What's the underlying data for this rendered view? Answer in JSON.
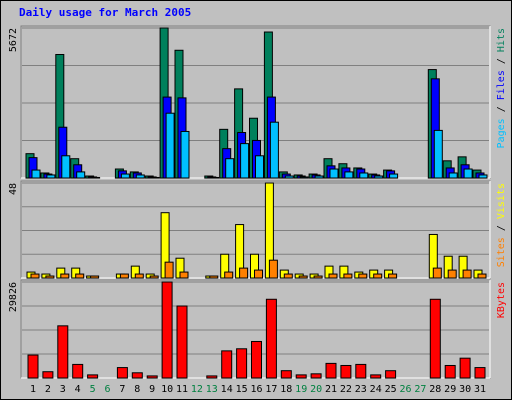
{
  "chart_data": [
    {
      "type": "bar",
      "title": "Daily usage for March 2005",
      "categories": [
        "1",
        "2",
        "3",
        "4",
        "5",
        "6",
        "7",
        "8",
        "9",
        "10",
        "11",
        "12",
        "13",
        "14",
        "15",
        "16",
        "17",
        "18",
        "19",
        "20",
        "21",
        "22",
        "23",
        "24",
        "25",
        "26",
        "27",
        "28",
        "29",
        "30",
        "31"
      ],
      "category_colors": [
        "#000000",
        "#000000",
        "#000000",
        "#000000",
        "#008040",
        "#008040",
        "#000000",
        "#000000",
        "#000000",
        "#000000",
        "#000000",
        "#008040",
        "#008040",
        "#000000",
        "#000000",
        "#000000",
        "#000000",
        "#000000",
        "#008040",
        "#008040",
        "#000000",
        "#000000",
        "#000000",
        "#000000",
        "#000000",
        "#008040",
        "#008040",
        "#000000",
        "#000000",
        "#000000",
        "#000000"
      ],
      "legend_separator": " / ",
      "ylim": [
        0,
        5672
      ],
      "yticks": [
        5672
      ],
      "series": [
        {
          "name": "Hits",
          "color": "#00805c",
          "values": [
            920,
            190,
            4670,
            730,
            75,
            0,
            340,
            230,
            75,
            5672,
            4830,
            0,
            75,
            1840,
            3370,
            2260,
            5520,
            230,
            115,
            150,
            730,
            540,
            380,
            150,
            300,
            0,
            0,
            4100,
            650,
            800,
            300
          ]
        },
        {
          "name": "Files",
          "color": "#0000ff",
          "values": [
            770,
            150,
            1920,
            500,
            40,
            0,
            270,
            190,
            40,
            3060,
            3030,
            0,
            40,
            1110,
            1720,
            1420,
            3060,
            150,
            75,
            115,
            460,
            380,
            340,
            115,
            270,
            0,
            0,
            3750,
            380,
            500,
            190
          ]
        },
        {
          "name": "Pages",
          "color": "#00c0ff",
          "values": [
            300,
            115,
            840,
            230,
            20,
            0,
            150,
            115,
            20,
            2450,
            1760,
            0,
            20,
            730,
            1300,
            840,
            2110,
            75,
            40,
            75,
            340,
            230,
            190,
            75,
            150,
            0,
            0,
            1800,
            190,
            340,
            115
          ]
        }
      ]
    },
    {
      "type": "bar",
      "ylim": [
        0,
        48
      ],
      "yticks": [
        48
      ],
      "series": [
        {
          "name": "Visits",
          "color": "#ffff00",
          "values": [
            3,
            2,
            5,
            5,
            1,
            0,
            2,
            6,
            2,
            33,
            10,
            0,
            1,
            12,
            27,
            12,
            48,
            4,
            2,
            2,
            6,
            6,
            3,
            4,
            4,
            0,
            0,
            22,
            11,
            11,
            4
          ]
        },
        {
          "name": "Sites",
          "color": "#ff8000",
          "values": [
            2,
            1,
            2,
            2,
            1,
            0,
            2,
            2,
            1,
            8,
            3,
            0,
            1,
            3,
            5,
            4,
            9,
            2,
            1,
            1,
            2,
            2,
            2,
            2,
            2,
            0,
            0,
            5,
            4,
            4,
            2
          ]
        }
      ]
    },
    {
      "type": "bar",
      "ylim": [
        0,
        29826
      ],
      "yticks": [
        29826
      ],
      "series": [
        {
          "name": "KBytes",
          "color": "#ff0000",
          "values": [
            7130,
            1950,
            16210,
            4220,
            970,
            0,
            3240,
            1620,
            650,
            29826,
            22370,
            0,
            650,
            8430,
            9080,
            11350,
            24460,
            2270,
            970,
            1300,
            4540,
            3890,
            4220,
            970,
            2270,
            0,
            0,
            24460,
            3890,
            6160,
            3240
          ]
        }
      ]
    }
  ]
}
